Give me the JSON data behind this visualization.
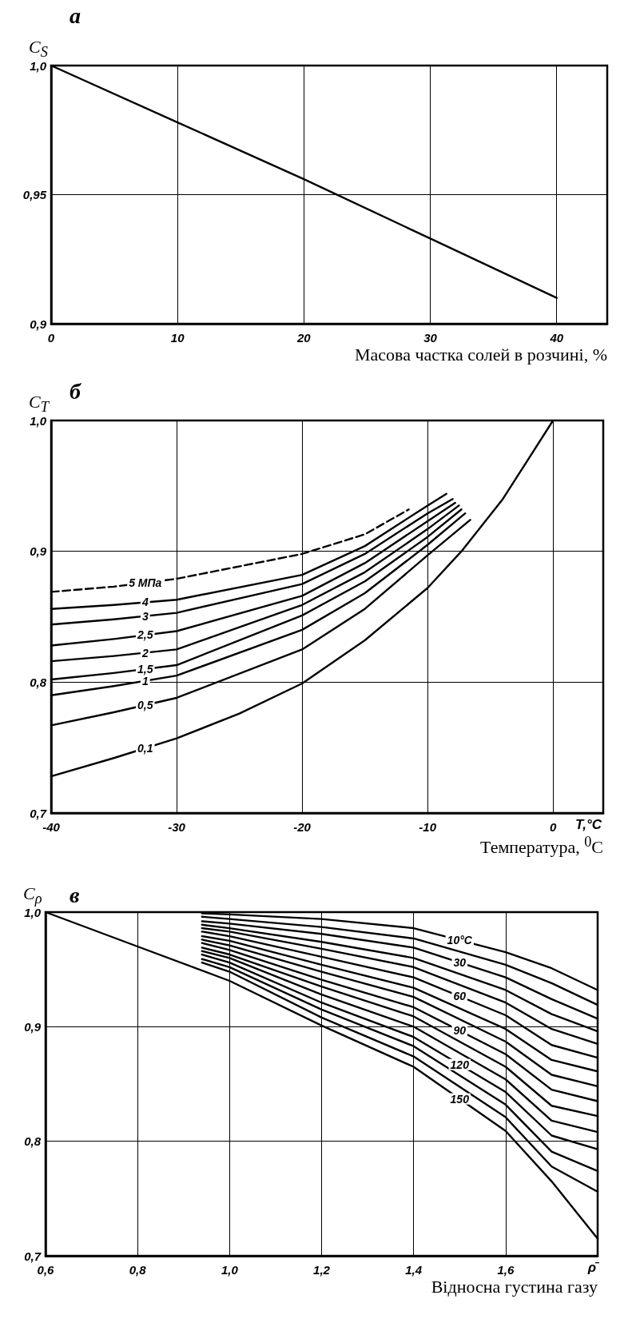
{
  "chart_data": [
    {
      "type": "line",
      "title": "а",
      "ylabel": "C$_{S}$",
      "xlabel": "Масова частка солей в розчині, %",
      "x": [
        0,
        10,
        20,
        30,
        40
      ],
      "series": [
        {
          "color": "#000000",
          "values": [
            1.0,
            0.978,
            0.956,
            0.933,
            0.91
          ]
        }
      ],
      "xlim": [
        0,
        44
      ],
      "xticks": [
        0,
        10,
        20,
        30,
        40
      ],
      "ylim": [
        0.9,
        1.0
      ],
      "yticks": [
        {
          "value": 0.9,
          "label": "0,9"
        },
        {
          "value": 0.95,
          "label": "0,95"
        },
        {
          "value": 1.0,
          "label": "1,0"
        }
      ],
      "grid": true,
      "marker": "none",
      "line_style": "solid"
    },
    {
      "type": "line",
      "title": "б",
      "ylabel": "C$_{T}$",
      "xlabel": "Температура, $^{0}$C",
      "annotations": [
        "T,°C"
      ],
      "series": [
        {
          "name": "5 МПа",
          "color": "#000000",
          "line_style": "dashed",
          "x": [
            -40,
            -35,
            -30,
            -20,
            -15,
            -11.5
          ],
          "values": [
            0.869,
            0.873,
            0.879,
            0.898,
            0.913,
            0.932
          ]
        },
        {
          "name": "4",
          "color": "#000000",
          "x": [
            -40,
            -35,
            -30,
            -20,
            -15,
            -10,
            -8.5
          ],
          "values": [
            0.856,
            0.859,
            0.863,
            0.882,
            0.904,
            0.935,
            0.944
          ]
        },
        {
          "name": "3",
          "color": "#000000",
          "x": [
            -40,
            -35,
            -30,
            -20,
            -15,
            -10,
            -8
          ],
          "values": [
            0.844,
            0.848,
            0.853,
            0.875,
            0.898,
            0.929,
            0.94
          ]
        },
        {
          "name": "2,5",
          "color": "#000000",
          "x": [
            -40,
            -35,
            -30,
            -20,
            -15,
            -10,
            -7.8
          ],
          "values": [
            0.828,
            0.833,
            0.839,
            0.866,
            0.891,
            0.923,
            0.937
          ]
        },
        {
          "name": "2",
          "color": "#000000",
          "x": [
            -40,
            -35,
            -30,
            -20,
            -15,
            -10,
            -7.5
          ],
          "values": [
            0.816,
            0.82,
            0.825,
            0.859,
            0.884,
            0.917,
            0.935
          ]
        },
        {
          "name": "1,5",
          "color": "#000000",
          "x": [
            -40,
            -35,
            -30,
            -20,
            -15,
            -10,
            -7.3
          ],
          "values": [
            0.802,
            0.807,
            0.813,
            0.851,
            0.877,
            0.911,
            0.932
          ]
        },
        {
          "name": "1",
          "color": "#000000",
          "x": [
            -40,
            -35,
            -30,
            -20,
            -15,
            -10,
            -7
          ],
          "values": [
            0.79,
            0.797,
            0.805,
            0.84,
            0.868,
            0.905,
            0.929
          ]
        },
        {
          "name": "0,5",
          "color": "#000000",
          "x": [
            -40,
            -35,
            -30,
            -20,
            -15,
            -10,
            -6.6
          ],
          "values": [
            0.767,
            0.777,
            0.788,
            0.825,
            0.856,
            0.897,
            0.924
          ]
        },
        {
          "name": "0,1",
          "color": "#000000",
          "x": [
            -40,
            -35,
            -30,
            -25,
            -20,
            -15,
            -10,
            -7.3,
            -4,
            -2,
            0
          ],
          "values": [
            0.728,
            0.742,
            0.757,
            0.776,
            0.799,
            0.832,
            0.872,
            0.9,
            0.94,
            0.97,
            1.0
          ]
        }
      ],
      "xlim": [
        -40,
        4
      ],
      "xticks": [
        -40,
        -30,
        -20,
        -10,
        0
      ],
      "ylim": [
        0.7,
        1.0
      ],
      "yticks": [
        {
          "value": 0.7,
          "label": "0,7"
        },
        {
          "value": 0.8,
          "label": "0,8"
        },
        {
          "value": 0.9,
          "label": "0,9"
        },
        {
          "value": 1.0,
          "label": "1,0"
        }
      ],
      "grid": true,
      "marker": "none",
      "line_style": "solid"
    },
    {
      "type": "line",
      "title": "в",
      "ylabel": "C$_{ρ}$",
      "xlabel": "Відносна густина газу",
      "annotations": [
        "ρ̄"
      ],
      "series": [
        {
          "name": "10°C",
          "color": "#000000",
          "x": [
            0.94,
            1.0,
            1.2,
            1.4,
            1.6,
            1.7,
            1.8
          ],
          "values": [
            0.999,
            0.998,
            0.994,
            0.986,
            0.965,
            0.951,
            0.932
          ]
        },
        {
          "color": "#000000",
          "x": [
            0.94,
            1.0,
            1.2,
            1.4,
            1.6,
            1.7,
            1.8
          ],
          "values": [
            0.996,
            0.994,
            0.987,
            0.977,
            0.954,
            0.938,
            0.919
          ]
        },
        {
          "name": "30",
          "color": "#000000",
          "x": [
            0.94,
            1.0,
            1.2,
            1.4,
            1.6,
            1.7,
            1.8
          ],
          "values": [
            0.992,
            0.99,
            0.981,
            0.969,
            0.943,
            0.924,
            0.907
          ]
        },
        {
          "color": "#000000",
          "x": [
            0.94,
            1.0,
            1.2,
            1.4,
            1.6,
            1.7,
            1.8
          ],
          "values": [
            0.989,
            0.986,
            0.974,
            0.96,
            0.932,
            0.911,
            0.896
          ]
        },
        {
          "color": "#000000",
          "x": [
            0.94,
            1.0,
            1.2,
            1.4,
            1.6,
            1.7,
            1.8
          ],
          "values": [
            0.986,
            0.983,
            0.968,
            0.952,
            0.921,
            0.898,
            0.885
          ]
        },
        {
          "name": "60",
          "color": "#000000",
          "x": [
            0.94,
            1.0,
            1.2,
            1.4,
            1.6,
            1.7,
            1.8
          ],
          "values": [
            0.983,
            0.979,
            0.961,
            0.943,
            0.91,
            0.884,
            0.873
          ]
        },
        {
          "color": "#000000",
          "x": [
            0.94,
            1.0,
            1.2,
            1.4,
            1.6,
            1.7,
            1.8
          ],
          "values": [
            0.979,
            0.975,
            0.954,
            0.934,
            0.898,
            0.871,
            0.861
          ]
        },
        {
          "color": "#000000",
          "x": [
            0.94,
            1.0,
            1.2,
            1.4,
            1.6,
            1.7,
            1.8
          ],
          "values": [
            0.976,
            0.971,
            0.948,
            0.926,
            0.887,
            0.858,
            0.848
          ]
        },
        {
          "name": "90",
          "color": "#000000",
          "x": [
            0.94,
            1.0,
            1.2,
            1.4,
            1.6,
            1.7,
            1.8
          ],
          "values": [
            0.973,
            0.967,
            0.941,
            0.917,
            0.876,
            0.845,
            0.835
          ]
        },
        {
          "color": "#000000",
          "x": [
            0.94,
            1.0,
            1.2,
            1.4,
            1.6,
            1.7,
            1.8
          ],
          "values": [
            0.969,
            0.963,
            0.935,
            0.909,
            0.865,
            0.831,
            0.822
          ]
        },
        {
          "color": "#000000",
          "x": [
            0.94,
            1.0,
            1.2,
            1.4,
            1.6,
            1.7,
            1.8
          ],
          "values": [
            0.966,
            0.96,
            0.928,
            0.9,
            0.854,
            0.818,
            0.808
          ]
        },
        {
          "name": "120",
          "color": "#000000",
          "x": [
            0.94,
            1.0,
            1.2,
            1.4,
            1.6,
            1.7,
            1.8
          ],
          "values": [
            0.963,
            0.956,
            0.921,
            0.891,
            0.843,
            0.805,
            0.793
          ]
        },
        {
          "color": "#000000",
          "x": [
            0.94,
            1.0,
            1.2,
            1.4,
            1.6,
            1.7,
            1.8
          ],
          "values": [
            0.959,
            0.952,
            0.915,
            0.883,
            0.832,
            0.791,
            0.774
          ]
        },
        {
          "color": "#000000",
          "x": [
            0.94,
            1.0,
            1.2,
            1.4,
            1.6,
            1.7,
            1.8
          ],
          "values": [
            0.956,
            0.948,
            0.908,
            0.874,
            0.821,
            0.778,
            0.756
          ]
        },
        {
          "name": "150",
          "color": "#000000",
          "x": [
            0.6,
            0.8,
            1.0,
            1.2,
            1.4,
            1.6,
            1.7,
            1.8
          ],
          "values": [
            1.0,
            0.97,
            0.94,
            0.901,
            0.865,
            0.809,
            0.765,
            0.715
          ]
        }
      ],
      "xlim": [
        0.6,
        1.8
      ],
      "xticks": [
        {
          "value": 0.6,
          "label": "0,6"
        },
        {
          "value": 0.8,
          "label": "0,8"
        },
        {
          "value": 1.0,
          "label": "1,0"
        },
        {
          "value": 1.2,
          "label": "1,2"
        },
        {
          "value": 1.4,
          "label": "1,4"
        },
        {
          "value": 1.6,
          "label": "1,6"
        }
      ],
      "ylim": [
        0.7,
        1.0
      ],
      "yticks": [
        {
          "value": 0.7,
          "label": "0,7"
        },
        {
          "value": 0.8,
          "label": "0,8"
        },
        {
          "value": 0.9,
          "label": "0,9"
        },
        {
          "value": 1.0,
          "label": "1,0"
        }
      ],
      "grid": true,
      "marker": "none",
      "line_style": "solid"
    }
  ]
}
